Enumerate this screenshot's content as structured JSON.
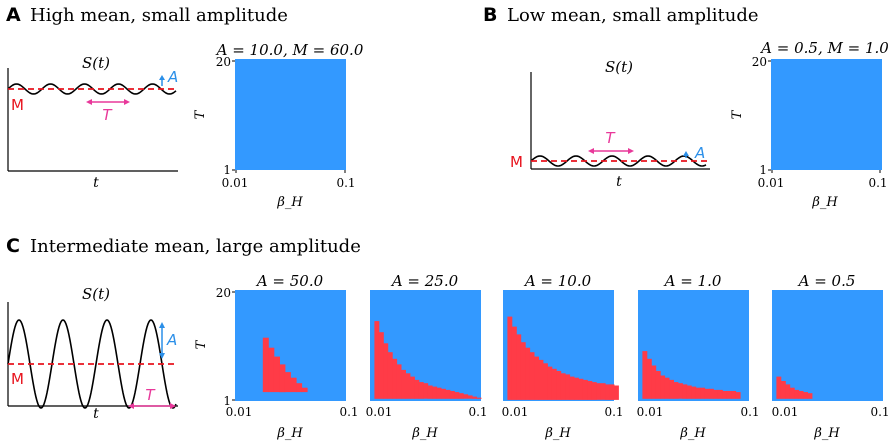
{
  "panels": [
    {
      "letter": "A",
      "title": "High mean, small amplitude"
    },
    {
      "letter": "B",
      "title": "Low mean, small amplitude"
    },
    {
      "letter": "C",
      "title": "Intermediate mean, large amplitude"
    }
  ],
  "schematic": {
    "title": "S(t)",
    "xlabel": "t",
    "mean_label": "M",
    "amplitude_label": "A",
    "period_label": "T"
  },
  "colors": {
    "background_region": "#3399ff",
    "red_region": "#ff3b47",
    "mean_line": "#e8141e",
    "amplitude_arrow": "#2b8fe8",
    "period_arrow": "#e8389a",
    "curve": "#000000"
  },
  "chart_data": [
    {
      "type": "heatmap",
      "title": "A = 10.0, M = 60.0",
      "xlabel": "β_H",
      "ylabel": "T",
      "x_ticks": [
        "0.01",
        "0.1"
      ],
      "y_ticks": [
        "1",
        "20"
      ],
      "xlim": [
        0.01,
        0.1
      ],
      "ylim": [
        1,
        20
      ],
      "red_region_profile": []
    },
    {
      "type": "heatmap",
      "title": "A = 0.5, M = 1.0",
      "xlabel": "β_H",
      "ylabel": "T",
      "x_ticks": [
        "0.01",
        "0.1"
      ],
      "y_ticks": [
        "1",
        "20"
      ],
      "xlim": [
        0.01,
        0.1
      ],
      "ylim": [
        1,
        20
      ],
      "red_region_profile": []
    },
    {
      "type": "heatmap",
      "title": "A = 50.0",
      "xlabel": "β_H",
      "ylabel": "T",
      "x_ticks": [
        "0.01",
        "0.1"
      ],
      "y_ticks": [
        "1",
        "20"
      ],
      "xlim": [
        0.01,
        0.1
      ],
      "ylim": [
        1,
        20
      ],
      "red_region_profile": [
        [
          0.25,
          0.57
        ],
        [
          0.3,
          0.48
        ],
        [
          0.35,
          0.4
        ],
        [
          0.4,
          0.33
        ],
        [
          0.45,
          0.26
        ],
        [
          0.5,
          0.21
        ],
        [
          0.55,
          0.16
        ],
        [
          0.6,
          0.12
        ]
      ],
      "red_region_bottom": 0.08
    },
    {
      "type": "heatmap",
      "title": "A = 25.0",
      "xlabel": "β_H",
      "ylabel": "T",
      "x_ticks": [
        "0.01",
        "0.1"
      ],
      "y_ticks": [
        "1",
        "20"
      ],
      "xlim": [
        0.01,
        0.1
      ],
      "ylim": [
        1,
        20
      ],
      "red_region_profile": [
        [
          0.04,
          0.72
        ],
        [
          0.08,
          0.62
        ],
        [
          0.12,
          0.52
        ],
        [
          0.16,
          0.44
        ],
        [
          0.2,
          0.38
        ],
        [
          0.24,
          0.33
        ],
        [
          0.28,
          0.28
        ],
        [
          0.32,
          0.25
        ],
        [
          0.36,
          0.22
        ],
        [
          0.4,
          0.19
        ],
        [
          0.44,
          0.17
        ],
        [
          0.48,
          0.16
        ],
        [
          0.52,
          0.14
        ],
        [
          0.56,
          0.13
        ],
        [
          0.6,
          0.12
        ],
        [
          0.64,
          0.11
        ],
        [
          0.68,
          0.1
        ],
        [
          0.72,
          0.09
        ],
        [
          0.76,
          0.08
        ],
        [
          0.8,
          0.07
        ],
        [
          0.84,
          0.06
        ],
        [
          0.88,
          0.05
        ],
        [
          0.92,
          0.04
        ],
        [
          0.96,
          0.03
        ]
      ],
      "red_region_bottom": 0.02
    },
    {
      "type": "heatmap",
      "title": "A = 10.0",
      "xlabel": "β_H",
      "ylabel": "T",
      "x_ticks": [
        "0.01",
        "0.1"
      ],
      "y_ticks": [
        "1",
        "20"
      ],
      "xlim": [
        0.01,
        0.1
      ],
      "ylim": [
        1,
        20
      ],
      "red_region_profile": [
        [
          0.04,
          0.76
        ],
        [
          0.08,
          0.67
        ],
        [
          0.12,
          0.6
        ],
        [
          0.16,
          0.53
        ],
        [
          0.2,
          0.48
        ],
        [
          0.24,
          0.44
        ],
        [
          0.28,
          0.4
        ],
        [
          0.32,
          0.37
        ],
        [
          0.36,
          0.34
        ],
        [
          0.4,
          0.31
        ],
        [
          0.44,
          0.29
        ],
        [
          0.48,
          0.27
        ],
        [
          0.52,
          0.25
        ],
        [
          0.56,
          0.24
        ],
        [
          0.6,
          0.22
        ],
        [
          0.64,
          0.21
        ],
        [
          0.68,
          0.2
        ],
        [
          0.72,
          0.19
        ],
        [
          0.76,
          0.18
        ],
        [
          0.8,
          0.17
        ],
        [
          0.84,
          0.16
        ],
        [
          0.88,
          0.16
        ],
        [
          0.92,
          0.15
        ],
        [
          0.96,
          0.15
        ],
        [
          1.0,
          0.14
        ]
      ],
      "red_region_bottom": 0.01
    },
    {
      "type": "heatmap",
      "title": "A = 1.0",
      "xlabel": "β_H",
      "ylabel": "T",
      "x_ticks": [
        "0.01",
        "0.1"
      ],
      "y_ticks": [
        "1",
        "20"
      ],
      "xlim": [
        0.01,
        0.1
      ],
      "ylim": [
        1,
        20
      ],
      "red_region_profile": [
        [
          0.04,
          0.45
        ],
        [
          0.08,
          0.38
        ],
        [
          0.12,
          0.32
        ],
        [
          0.16,
          0.27
        ],
        [
          0.2,
          0.23
        ],
        [
          0.24,
          0.21
        ],
        [
          0.28,
          0.19
        ],
        [
          0.32,
          0.17
        ],
        [
          0.36,
          0.16
        ],
        [
          0.4,
          0.15
        ],
        [
          0.44,
          0.14
        ],
        [
          0.48,
          0.13
        ],
        [
          0.52,
          0.12
        ],
        [
          0.56,
          0.12
        ],
        [
          0.6,
          0.11
        ],
        [
          0.64,
          0.11
        ],
        [
          0.68,
          0.1
        ],
        [
          0.72,
          0.1
        ],
        [
          0.76,
          0.09
        ],
        [
          0.8,
          0.09
        ],
        [
          0.84,
          0.09
        ],
        [
          0.88,
          0.08
        ]
      ],
      "red_region_bottom": 0.02
    },
    {
      "type": "heatmap",
      "title": "A = 0.5",
      "xlabel": "β_H",
      "ylabel": "T",
      "x_ticks": [
        "0.01",
        "0.1"
      ],
      "y_ticks": [
        "1",
        "20"
      ],
      "xlim": [
        0.01,
        0.1
      ],
      "ylim": [
        1,
        20
      ],
      "red_region_profile": [
        [
          0.04,
          0.22
        ],
        [
          0.08,
          0.18
        ],
        [
          0.12,
          0.15
        ],
        [
          0.16,
          0.12
        ],
        [
          0.2,
          0.1
        ],
        [
          0.24,
          0.09
        ],
        [
          0.28,
          0.08
        ],
        [
          0.32,
          0.07
        ]
      ],
      "red_region_bottom": 0.02
    }
  ]
}
